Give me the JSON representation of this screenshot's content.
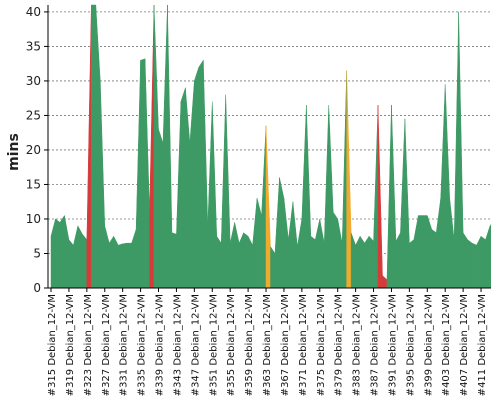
{
  "chart_data": {
    "type": "area",
    "ylabel": "mins",
    "ylim": [
      0,
      41
    ],
    "yticks": [
      0,
      5,
      10,
      15,
      20,
      25,
      30,
      35,
      40
    ],
    "grid": true,
    "x_labels": [
      "#315 Debian_12-VM",
      "#319 Debian_12-VM",
      "#323 Debian_12-VM",
      "#327 Debian_12-VM",
      "#331 Debian_12-VM",
      "#335 Debian_12-VM",
      "#339 Debian_12-VM",
      "#343 Debian_12-VM",
      "#347 Debian_12-VM",
      "#351 Debian_12-VM",
      "#355 Debian_12-VM",
      "#359 Debian_12-VM",
      "#363 Debian_12-VM",
      "#367 Debian_12-VM",
      "#371 Debian_12-VM",
      "#375 Debian_12-VM",
      "#379 Debian_12-VM",
      "#383 Debian_12-VM",
      "#387 Debian_12-VM",
      "#391 Debian_12-VM",
      "#395 Debian_12-VM",
      "#399 Debian_12-VM",
      "#403 Debian_12-VM",
      "#407 Debian_12-VM",
      "#411 Debian_12-VM"
    ],
    "builds": [
      315,
      316,
      317,
      318,
      319,
      320,
      321,
      322,
      323,
      324,
      325,
      326,
      327,
      328,
      329,
      330,
      331,
      332,
      333,
      334,
      335,
      336,
      337,
      338,
      339,
      340,
      341,
      342,
      343,
      344,
      345,
      346,
      347,
      348,
      349,
      350,
      351,
      352,
      353,
      354,
      355,
      356,
      357,
      358,
      359,
      360,
      361,
      362,
      363,
      364,
      365,
      366,
      367,
      368,
      369,
      370,
      371,
      372,
      373,
      374,
      375,
      376,
      377,
      378,
      379,
      380,
      381,
      382,
      383,
      384,
      385,
      386,
      387,
      388,
      389,
      390,
      391,
      392,
      393,
      394,
      395,
      396,
      397,
      398,
      399,
      400,
      401,
      402,
      403,
      404,
      405,
      406,
      407,
      408,
      409,
      410,
      411,
      412,
      413
    ],
    "values": [
      7.5,
      10,
      9.5,
      10.5,
      7,
      6.2,
      9,
      7.8,
      7.0,
      41,
      41,
      30,
      9,
      6.5,
      7.5,
      6.2,
      6.4,
      6.5,
      6.5,
      8.5,
      33,
      33.2,
      11,
      41,
      23,
      21,
      41,
      8,
      7.8,
      27,
      29,
      21,
      30,
      32,
      33,
      9,
      27,
      7.5,
      6.5,
      28,
      6.5,
      9.5,
      6.5,
      8,
      7.5,
      6.2,
      13,
      10.5,
      23.5,
      6,
      5,
      16,
      13,
      7,
      12.5,
      6,
      10,
      26.5,
      7.5,
      7,
      10,
      6.5,
      26.5,
      11,
      10,
      6.5,
      31.5,
      8,
      6.2,
      7.5,
      6.5,
      7.5,
      6.8,
      26.5,
      1.8,
      1.2,
      26.5,
      6.8,
      8,
      24.5,
      6.5,
      7,
      10.5,
      10.5,
      10.5,
      8.5,
      8,
      13,
      29.5,
      13,
      7,
      40,
      8,
      7,
      6.5,
      6.2,
      7.5,
      7,
      9
    ],
    "status": [
      "f",
      "s",
      "s",
      "s",
      "s",
      "s",
      "s",
      "s",
      "s",
      "f",
      "s",
      "s",
      "s",
      "s",
      "s",
      "s",
      "s",
      "s",
      "s",
      "s",
      "s",
      "s",
      "s",
      "f",
      "s",
      "s",
      "s",
      "s",
      "s",
      "s",
      "s",
      "s",
      "s",
      "s",
      "s",
      "s",
      "s",
      "s",
      "s",
      "s",
      "s",
      "s",
      "s",
      "s",
      "s",
      "s",
      "s",
      "s",
      "s",
      "u",
      "s",
      "s",
      "s",
      "s",
      "s",
      "s",
      "s",
      "s",
      "s",
      "s",
      "s",
      "s",
      "s",
      "s",
      "s",
      "s",
      "s",
      "u",
      "s",
      "s",
      "s",
      "s",
      "s",
      "s",
      "f",
      "f",
      "s",
      "s",
      "s",
      "s",
      "s",
      "s",
      "s",
      "s",
      "s",
      "s",
      "s",
      "s",
      "s",
      "s",
      "s",
      "s",
      "s",
      "s",
      "s",
      "s",
      "s",
      "s",
      "s"
    ],
    "status_colors": {
      "s": "#3e9a64",
      "f": "#d43c3c",
      "u": "#f0ab2e"
    },
    "background": "#ffffff"
  }
}
